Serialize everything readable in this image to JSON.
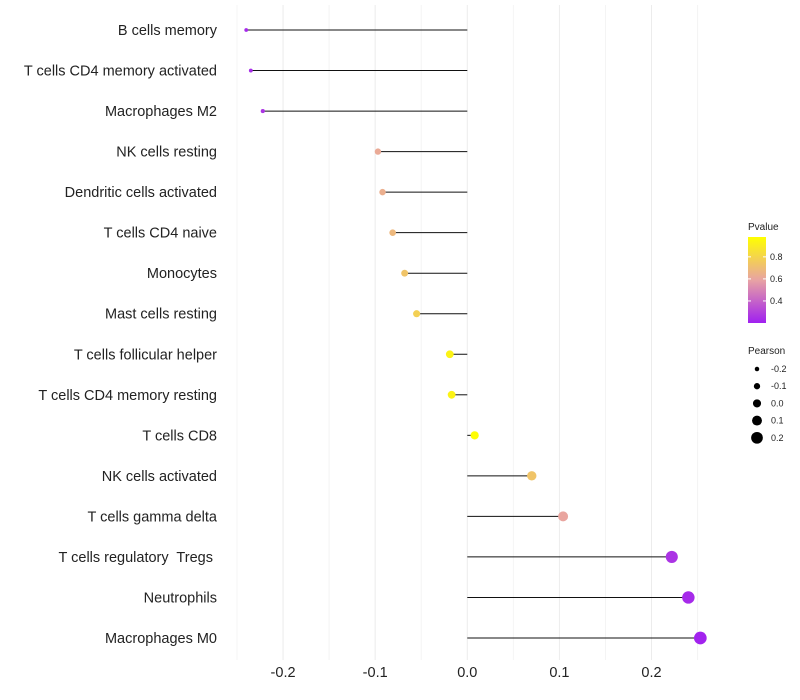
{
  "chart_data": {
    "type": "lollipop",
    "title": "",
    "xlabel": "",
    "ylabel": "",
    "xlim": [
      -0.25,
      0.27
    ],
    "x_ticks": [
      "-0.2",
      "-0.1",
      "0.0",
      "0.1",
      "0.2"
    ],
    "points": [
      {
        "label": "B cells memory",
        "pearson": -0.24,
        "pvalue": 0.23
      },
      {
        "label": "T cells CD4 memory activated",
        "pearson": -0.235,
        "pvalue": 0.24
      },
      {
        "label": "Macrophages M2",
        "pearson": -0.222,
        "pvalue": 0.26
      },
      {
        "label": "NK cells resting",
        "pearson": -0.097,
        "pvalue": 0.62
      },
      {
        "label": "Dendritic cells activated",
        "pearson": -0.092,
        "pvalue": 0.64
      },
      {
        "label": "T cells CD4 naive",
        "pearson": -0.081,
        "pvalue": 0.68
      },
      {
        "label": "Monocytes",
        "pearson": -0.068,
        "pvalue": 0.73
      },
      {
        "label": "Mast cells resting",
        "pearson": -0.055,
        "pvalue": 0.78
      },
      {
        "label": "T cells follicular helper",
        "pearson": -0.019,
        "pvalue": 0.93
      },
      {
        "label": "T cells CD4 memory resting",
        "pearson": -0.017,
        "pvalue": 0.93
      },
      {
        "label": "T cells CD8",
        "pearson": 0.008,
        "pvalue": 0.97
      },
      {
        "label": "NK cells activated",
        "pearson": 0.07,
        "pvalue": 0.73
      },
      {
        "label": "T cells gamma delta",
        "pearson": 0.104,
        "pvalue": 0.6
      },
      {
        "label": "T cells regulatory  Tregs ",
        "pearson": 0.222,
        "pvalue": 0.26
      },
      {
        "label": "Neutrophils",
        "pearson": 0.24,
        "pvalue": 0.23
      },
      {
        "label": "Macrophages M0",
        "pearson": 0.253,
        "pvalue": 0.21
      }
    ],
    "legend": {
      "color": {
        "title": "Pvalue",
        "ticks": [
          "0.4",
          "0.6",
          "0.8"
        ],
        "tick_values": [
          0.4,
          0.6,
          0.8
        ],
        "range": [
          0.2,
          0.98
        ],
        "low_color": "#a020f0",
        "mid_color": "#e8a3a3",
        "high_color": "#ffff00"
      },
      "size": {
        "title": "Pearson",
        "ticks": [
          "-0.2",
          "-0.1",
          "0.0",
          "0.1",
          "0.2"
        ],
        "tick_values": [
          -0.2,
          -0.1,
          0.0,
          0.1,
          0.2
        ]
      }
    }
  }
}
